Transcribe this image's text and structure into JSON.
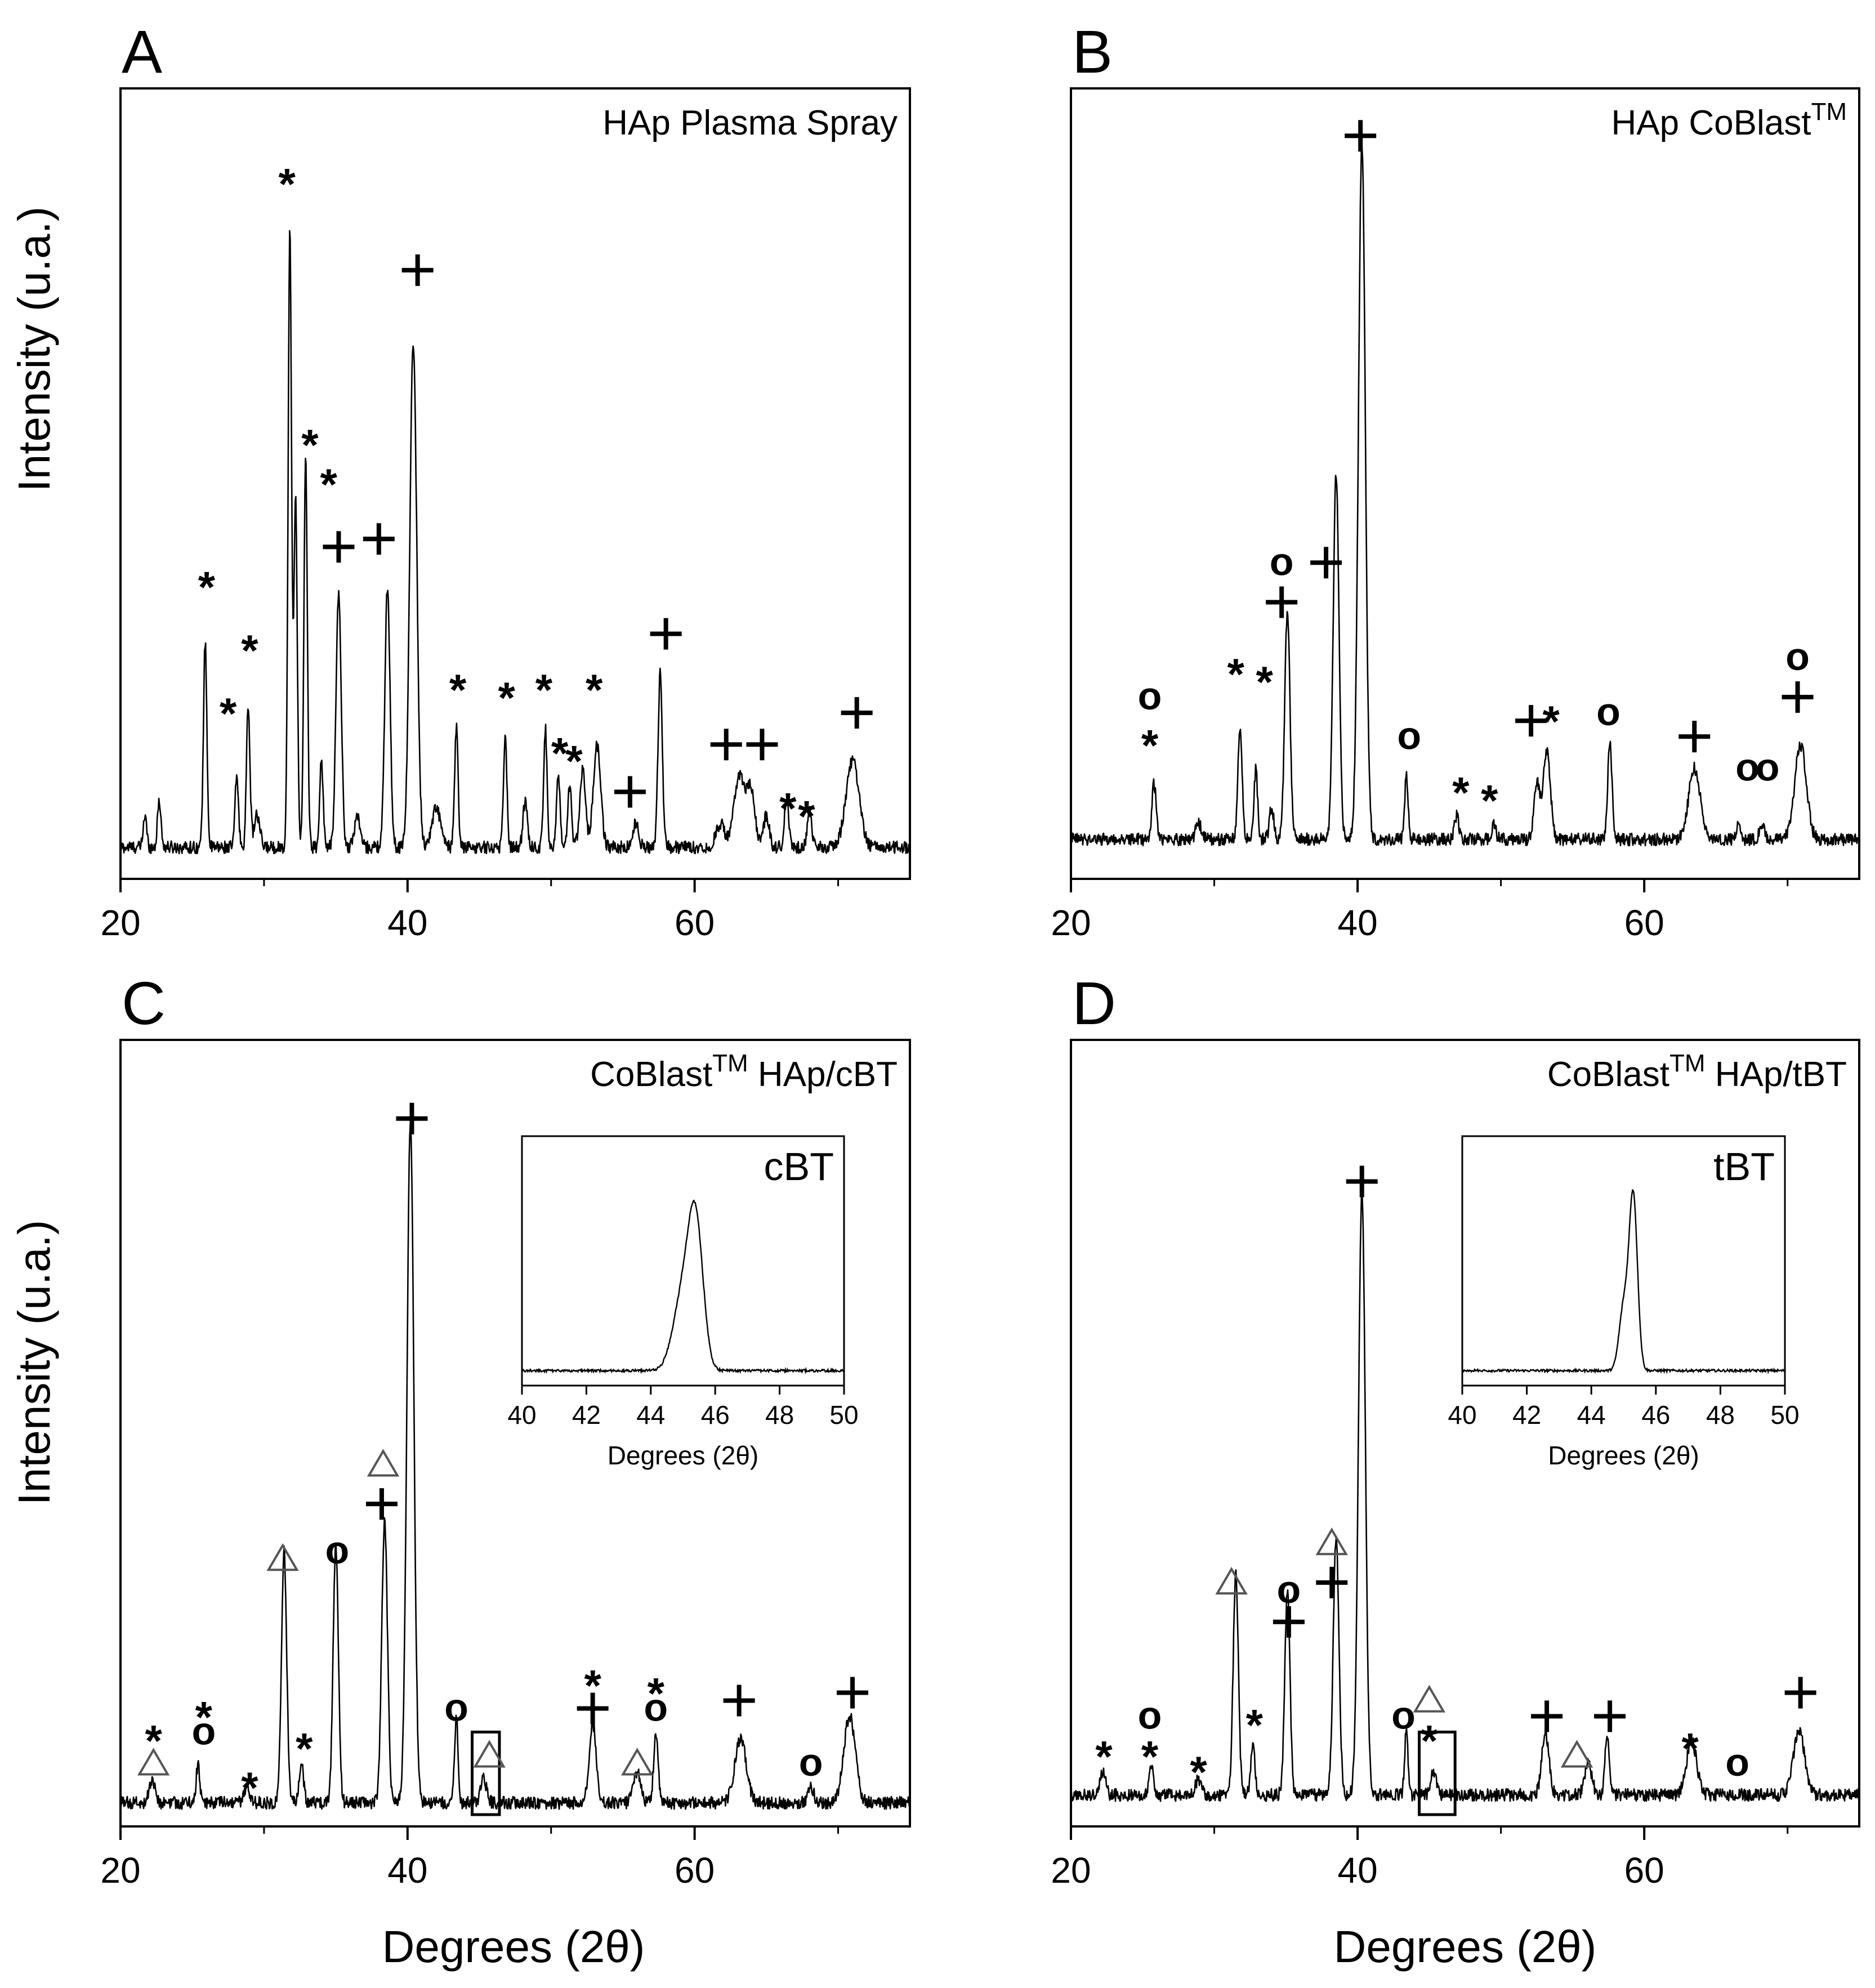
{
  "figure": {
    "y_axis_label": "Intensity (u.a.)",
    "x_axis_label": "Degrees (2θ)"
  },
  "chart_data": [
    {
      "id": "A",
      "type": "line",
      "panel_letter": "A",
      "title": "HAp Plasma Spray",
      "title_sup": "",
      "title_after": "",
      "xlabel": "Degrees (2θ)",
      "ylabel": "Intensity (u.a.)",
      "xlim": [
        20,
        75
      ],
      "ylim": [
        0,
        100
      ],
      "x_ticks": [
        20,
        40,
        60
      ],
      "baseline": 4,
      "peaks": [
        {
          "x": 21.7,
          "h": 4,
          "w": 0.12
        },
        {
          "x": 22.7,
          "h": 6,
          "w": 0.12
        },
        {
          "x": 25.9,
          "h": 26,
          "w": 0.12
        },
        {
          "x": 28.1,
          "h": 9,
          "w": 0.12
        },
        {
          "x": 28.9,
          "h": 18,
          "w": 0.12
        },
        {
          "x": 29.5,
          "h": 4,
          "w": 0.2
        },
        {
          "x": 31.8,
          "h": 78,
          "w": 0.12
        },
        {
          "x": 32.2,
          "h": 44,
          "w": 0.12
        },
        {
          "x": 32.9,
          "h": 49,
          "w": 0.12
        },
        {
          "x": 34.0,
          "h": 11,
          "w": 0.12
        },
        {
          "x": 35.2,
          "h": 32,
          "w": 0.18
        },
        {
          "x": 36.5,
          "h": 4,
          "w": 0.2
        },
        {
          "x": 38.6,
          "h": 33,
          "w": 0.18
        },
        {
          "x": 40.4,
          "h": 64,
          "w": 0.24
        },
        {
          "x": 42.0,
          "h": 5,
          "w": 0.3
        },
        {
          "x": 43.4,
          "h": 15,
          "w": 0.12
        },
        {
          "x": 46.8,
          "h": 14,
          "w": 0.12
        },
        {
          "x": 48.2,
          "h": 6,
          "w": 0.15
        },
        {
          "x": 49.6,
          "h": 15,
          "w": 0.12
        },
        {
          "x": 50.5,
          "h": 9,
          "w": 0.12
        },
        {
          "x": 51.3,
          "h": 8,
          "w": 0.12
        },
        {
          "x": 52.2,
          "h": 10,
          "w": 0.2
        },
        {
          "x": 53.2,
          "h": 13,
          "w": 0.25
        },
        {
          "x": 55.9,
          "h": 3,
          "w": 0.2
        },
        {
          "x": 57.6,
          "h": 22,
          "w": 0.15
        },
        {
          "x": 61.8,
          "h": 3,
          "w": 0.3
        },
        {
          "x": 63.1,
          "h": 9,
          "w": 0.35
        },
        {
          "x": 63.9,
          "h": 7,
          "w": 0.3
        },
        {
          "x": 65.0,
          "h": 4,
          "w": 0.2
        },
        {
          "x": 66.4,
          "h": 6,
          "w": 0.15
        },
        {
          "x": 68.0,
          "h": 5,
          "w": 0.15
        },
        {
          "x": 71.0,
          "h": 11,
          "w": 0.45
        }
      ],
      "annotations": [
        {
          "x": 26.0,
          "y": 38,
          "s": "*"
        },
        {
          "x": 27.5,
          "y": 22,
          "s": "*"
        },
        {
          "x": 29.0,
          "y": 30,
          "s": "*"
        },
        {
          "x": 31.6,
          "y": 89,
          "s": "*"
        },
        {
          "x": 33.2,
          "y": 56,
          "s": "*"
        },
        {
          "x": 34.5,
          "y": 51,
          "s": "*"
        },
        {
          "x": 35.2,
          "y": 42,
          "s": "+"
        },
        {
          "x": 38.0,
          "y": 43,
          "s": "+"
        },
        {
          "x": 40.7,
          "y": 77,
          "s": "+"
        },
        {
          "x": 43.5,
          "y": 25,
          "s": "*"
        },
        {
          "x": 46.9,
          "y": 24,
          "s": "*"
        },
        {
          "x": 49.5,
          "y": 25,
          "s": "*"
        },
        {
          "x": 50.6,
          "y": 17,
          "s": "*"
        },
        {
          "x": 51.6,
          "y": 16,
          "s": "*"
        },
        {
          "x": 53.0,
          "y": 25,
          "s": "*"
        },
        {
          "x": 55.5,
          "y": 11,
          "s": "+"
        },
        {
          "x": 58.0,
          "y": 31,
          "s": "+"
        },
        {
          "x": 62.2,
          "y": 17,
          "s": "+"
        },
        {
          "x": 64.7,
          "y": 17,
          "s": "+"
        },
        {
          "x": 66.5,
          "y": 10,
          "s": "*"
        },
        {
          "x": 67.8,
          "y": 9,
          "s": "*"
        },
        {
          "x": 71.3,
          "y": 21,
          "s": "+"
        }
      ]
    },
    {
      "id": "B",
      "type": "line",
      "panel_letter": "B",
      "title": "HAp CoBlast",
      "title_sup": "TM",
      "title_after": "",
      "xlabel": "Degrees (2θ)",
      "ylabel": "Intensity (u.a.)",
      "xlim": [
        20,
        75
      ],
      "ylim": [
        0,
        100
      ],
      "x_ticks": [
        20,
        40,
        60
      ],
      "baseline": 5,
      "peaks": [
        {
          "x": 25.8,
          "h": 7,
          "w": 0.15
        },
        {
          "x": 28.9,
          "h": 2,
          "w": 0.2
        },
        {
          "x": 31.8,
          "h": 14,
          "w": 0.15
        },
        {
          "x": 32.9,
          "h": 9,
          "w": 0.12
        },
        {
          "x": 34.0,
          "h": 4,
          "w": 0.15
        },
        {
          "x": 35.1,
          "h": 29,
          "w": 0.18
        },
        {
          "x": 38.5,
          "h": 46,
          "w": 0.2
        },
        {
          "x": 40.3,
          "h": 88,
          "w": 0.24
        },
        {
          "x": 43.4,
          "h": 8,
          "w": 0.12
        },
        {
          "x": 46.9,
          "h": 3,
          "w": 0.15
        },
        {
          "x": 49.5,
          "h": 2,
          "w": 0.15
        },
        {
          "x": 52.5,
          "h": 7,
          "w": 0.2
        },
        {
          "x": 53.2,
          "h": 11,
          "w": 0.25
        },
        {
          "x": 57.6,
          "h": 12,
          "w": 0.15
        },
        {
          "x": 63.5,
          "h": 9,
          "w": 0.4
        },
        {
          "x": 66.6,
          "h": 2,
          "w": 0.15
        },
        {
          "x": 68.2,
          "h": 2,
          "w": 0.15
        },
        {
          "x": 70.9,
          "h": 12,
          "w": 0.4
        }
      ],
      "annotations": [
        {
          "x": 25.5,
          "y": 23,
          "s": "o"
        },
        {
          "x": 25.5,
          "y": 18,
          "s": "*"
        },
        {
          "x": 31.5,
          "y": 27,
          "s": "*"
        },
        {
          "x": 33.5,
          "y": 26,
          "s": "*"
        },
        {
          "x": 34.7,
          "y": 40,
          "s": "o"
        },
        {
          "x": 34.7,
          "y": 35,
          "s": "+"
        },
        {
          "x": 37.8,
          "y": 40,
          "s": "+"
        },
        {
          "x": 40.2,
          "y": 94,
          "s": "+"
        },
        {
          "x": 43.6,
          "y": 18,
          "s": "o"
        },
        {
          "x": 47.2,
          "y": 12,
          "s": "*"
        },
        {
          "x": 49.2,
          "y": 11,
          "s": "*"
        },
        {
          "x": 52.1,
          "y": 20,
          "s": "+"
        },
        {
          "x": 53.5,
          "y": 21,
          "s": "*"
        },
        {
          "x": 57.5,
          "y": 21,
          "s": "o"
        },
        {
          "x": 63.5,
          "y": 18,
          "s": "+"
        },
        {
          "x": 67.2,
          "y": 14,
          "s": "o"
        },
        {
          "x": 68.6,
          "y": 14,
          "s": "o"
        },
        {
          "x": 70.7,
          "y": 28,
          "s": "o"
        },
        {
          "x": 70.7,
          "y": 23,
          "s": "+"
        }
      ]
    },
    {
      "id": "C",
      "type": "line",
      "panel_letter": "C",
      "title": "CoBlast",
      "title_sup": "TM",
      "title_after": " HAp/cBT",
      "xlabel": "Degrees (2θ)",
      "ylabel": "Intensity (u.a.)",
      "xlim": [
        20,
        75
      ],
      "ylim": [
        0,
        100
      ],
      "x_ticks": [
        20,
        40,
        60
      ],
      "baseline": 3,
      "peaks": [
        {
          "x": 22.2,
          "h": 3,
          "w": 0.2
        },
        {
          "x": 25.4,
          "h": 5,
          "w": 0.12
        },
        {
          "x": 28.8,
          "h": 2,
          "w": 0.2
        },
        {
          "x": 31.4,
          "h": 32,
          "w": 0.18
        },
        {
          "x": 32.6,
          "h": 5,
          "w": 0.15
        },
        {
          "x": 35.0,
          "h": 33,
          "w": 0.18
        },
        {
          "x": 38.4,
          "h": 36,
          "w": 0.2
        },
        {
          "x": 40.2,
          "h": 87,
          "w": 0.24
        },
        {
          "x": 43.4,
          "h": 11,
          "w": 0.12
        },
        {
          "x": 45.3,
          "h": 3,
          "w": 0.2
        },
        {
          "x": 52.9,
          "h": 10,
          "w": 0.25
        },
        {
          "x": 56.0,
          "h": 4,
          "w": 0.25
        },
        {
          "x": 57.3,
          "h": 9,
          "w": 0.15
        },
        {
          "x": 63.2,
          "h": 8,
          "w": 0.4
        },
        {
          "x": 68.1,
          "h": 2,
          "w": 0.2
        },
        {
          "x": 70.8,
          "h": 11,
          "w": 0.4
        }
      ],
      "annotations": [
        {
          "x": 22.3,
          "y": 12,
          "s": "*"
        },
        {
          "x": 22.3,
          "y": 8,
          "s": "△"
        },
        {
          "x": 25.8,
          "y": 15,
          "s": "*"
        },
        {
          "x": 25.8,
          "y": 12,
          "s": "o"
        },
        {
          "x": 29.0,
          "y": 6,
          "s": "*"
        },
        {
          "x": 31.3,
          "y": 34,
          "s": "△"
        },
        {
          "x": 32.8,
          "y": 11,
          "s": "*"
        },
        {
          "x": 35.1,
          "y": 35,
          "s": "o"
        },
        {
          "x": 38.3,
          "y": 46,
          "s": "△"
        },
        {
          "x": 38.2,
          "y": 41,
          "s": "+"
        },
        {
          "x": 40.3,
          "y": 90,
          "s": "+"
        },
        {
          "x": 43.4,
          "y": 15,
          "s": "o"
        },
        {
          "x": 45.7,
          "y": 9,
          "s": "△"
        },
        {
          "x": 52.9,
          "y": 19,
          "s": "*"
        },
        {
          "x": 52.9,
          "y": 15,
          "s": "+"
        },
        {
          "x": 56.0,
          "y": 8,
          "s": "△"
        },
        {
          "x": 57.3,
          "y": 18,
          "s": "*"
        },
        {
          "x": 57.3,
          "y": 15,
          "s": "o"
        },
        {
          "x": 63.1,
          "y": 16,
          "s": "+"
        },
        {
          "x": 68.1,
          "y": 8,
          "s": "o"
        },
        {
          "x": 71.0,
          "y": 17,
          "s": "+"
        }
      ],
      "highlight_box": [
        44.5,
        46.4
      ],
      "inset": {
        "label": "cBT",
        "xlim": [
          40,
          50
        ],
        "ylim": [
          0,
          100
        ],
        "x_ticks": [
          40,
          42,
          44,
          46,
          48,
          50
        ],
        "xlabel": "Degrees (2θ)",
        "baseline": 6,
        "peaks": [
          {
            "x": 45.4,
            "h": 54,
            "w": 0.23
          },
          {
            "x": 45.0,
            "h": 30,
            "w": 0.3
          }
        ]
      }
    },
    {
      "id": "D",
      "type": "line",
      "panel_letter": "D",
      "title": "CoBlast",
      "title_sup": "TM",
      "title_after": " HAp/tBT",
      "xlabel": "Degrees (2θ)",
      "ylabel": "Intensity (u.a.)",
      "xlim": [
        20,
        75
      ],
      "ylim": [
        0,
        100
      ],
      "x_ticks": [
        20,
        40,
        60
      ],
      "baseline": 4,
      "peaks": [
        {
          "x": 22.2,
          "h": 3,
          "w": 0.2
        },
        {
          "x": 25.6,
          "h": 4,
          "w": 0.15
        },
        {
          "x": 28.9,
          "h": 2,
          "w": 0.2
        },
        {
          "x": 31.5,
          "h": 28,
          "w": 0.18
        },
        {
          "x": 32.7,
          "h": 6,
          "w": 0.15
        },
        {
          "x": 35.1,
          "h": 26,
          "w": 0.18
        },
        {
          "x": 38.5,
          "h": 33,
          "w": 0.2
        },
        {
          "x": 40.3,
          "h": 77,
          "w": 0.24
        },
        {
          "x": 43.4,
          "h": 8,
          "w": 0.12
        },
        {
          "x": 45.3,
          "h": 3,
          "w": 0.2
        },
        {
          "x": 53.1,
          "h": 8,
          "w": 0.25
        },
        {
          "x": 56.1,
          "h": 4,
          "w": 0.25
        },
        {
          "x": 57.4,
          "h": 8,
          "w": 0.15
        },
        {
          "x": 63.3,
          "h": 7,
          "w": 0.35
        },
        {
          "x": 70.8,
          "h": 8,
          "w": 0.4
        }
      ],
      "annotations": [
        {
          "x": 22.3,
          "y": 10,
          "s": "*"
        },
        {
          "x": 25.5,
          "y": 14,
          "s": "o"
        },
        {
          "x": 25.5,
          "y": 10,
          "s": "*"
        },
        {
          "x": 28.9,
          "y": 8,
          "s": "*"
        },
        {
          "x": 31.2,
          "y": 31,
          "s": "△"
        },
        {
          "x": 32.8,
          "y": 14,
          "s": "*"
        },
        {
          "x": 35.2,
          "y": 30,
          "s": "o"
        },
        {
          "x": 35.2,
          "y": 26,
          "s": "+"
        },
        {
          "x": 38.2,
          "y": 36,
          "s": "△"
        },
        {
          "x": 38.2,
          "y": 31,
          "s": "+"
        },
        {
          "x": 40.3,
          "y": 82,
          "s": "+"
        },
        {
          "x": 43.2,
          "y": 14,
          "s": "o"
        },
        {
          "x": 45.0,
          "y": 16,
          "s": "△"
        },
        {
          "x": 45.0,
          "y": 12,
          "s": "*"
        },
        {
          "x": 53.2,
          "y": 14,
          "s": "+"
        },
        {
          "x": 55.3,
          "y": 9,
          "s": "△"
        },
        {
          "x": 57.6,
          "y": 14,
          "s": "+"
        },
        {
          "x": 63.2,
          "y": 11,
          "s": "*"
        },
        {
          "x": 66.5,
          "y": 8,
          "s": "o"
        },
        {
          "x": 70.9,
          "y": 17,
          "s": "+"
        }
      ],
      "highlight_box": [
        44.3,
        46.8
      ],
      "inset": {
        "label": "tBT",
        "xlim": [
          40,
          50
        ],
        "ylim": [
          0,
          100
        ],
        "x_ticks": [
          40,
          42,
          44,
          46,
          48,
          50
        ],
        "xlabel": "Degrees (2θ)",
        "baseline": 6,
        "peaks": [
          {
            "x": 45.3,
            "h": 70,
            "w": 0.13
          },
          {
            "x": 45.0,
            "h": 25,
            "w": 0.14
          }
        ]
      }
    }
  ]
}
